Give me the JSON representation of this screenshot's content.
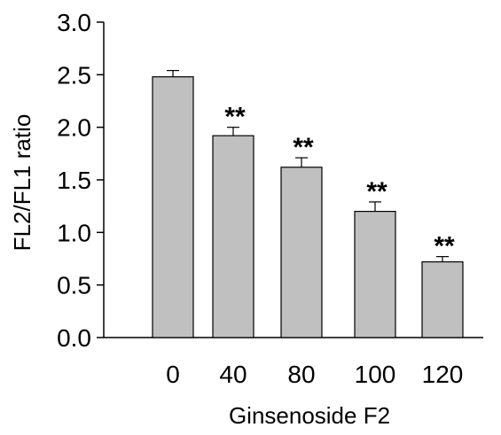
{
  "chart_data": {
    "type": "bar",
    "title": "",
    "xlabel": "Ginsenoside F2",
    "ylabel": "FL2/FL1 ratio",
    "categories": [
      "0",
      "40",
      "80",
      "100",
      "120"
    ],
    "values": [
      2.48,
      1.92,
      1.62,
      1.2,
      0.72
    ],
    "errors": [
      0.06,
      0.08,
      0.09,
      0.09,
      0.05
    ],
    "annotations": [
      "",
      "**",
      "**",
      "**",
      "**"
    ],
    "ylim": [
      0,
      3.0
    ],
    "yticks": [
      "0.0",
      "0.5",
      "1.0",
      "1.5",
      "2.0",
      "2.5",
      "3.0"
    ],
    "grid": false,
    "colors": {
      "bar_fill": "#c0c0c0",
      "bar_stroke": "#000000",
      "axis": "#000000"
    }
  }
}
